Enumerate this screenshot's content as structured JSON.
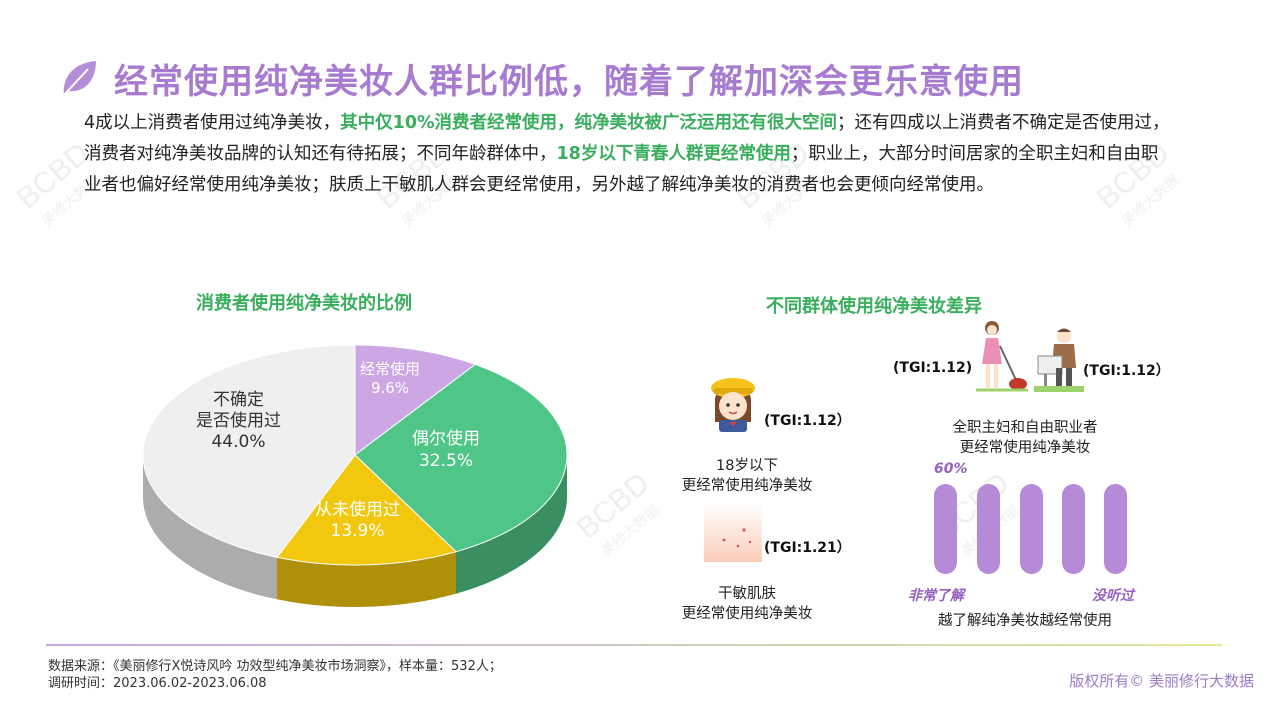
{
  "header": {
    "title": "经常使用纯净美妆人群比例低，随着了解加深会更乐意使用"
  },
  "intro": {
    "p1": "4成以上消费者使用过纯净美妆，",
    "h1": "其中仅10%消费者经常使用，纯净美妆被广泛运用还有很大空间",
    "p2": "；还有四成以上消费者不确定是否使用过，消费者对纯净美妆品牌的认知还有待拓展；不同年龄群体中，",
    "h2": "18岁以下青春人群更经常使用",
    "p3": "；职业上，大部分时间居家的全职主妇和自由职业者也偏好经常使用纯净美妆；肤质上干敏肌人群会更经常使用，另外越了解纯净美妆的消费者也会更倾向经常使用。"
  },
  "left_section": {
    "title": "消费者使用纯净美妆的比例"
  },
  "right_section": {
    "title": "不同群体使用纯净美妆差异"
  },
  "chart_data": {
    "type": "pie",
    "title": "消费者使用纯净美妆的比例",
    "slices": [
      {
        "label": "经常使用",
        "value": 9.6,
        "display": "9.6%",
        "color": "#cda7e4"
      },
      {
        "label": "偶尔使用",
        "value": 32.5,
        "display": "32.5%",
        "color": "#4fc688"
      },
      {
        "label": "从未使用过",
        "value": 13.9,
        "display": "13.9%",
        "color": "#f2c80f"
      },
      {
        "label": "不确定\n是否使用过",
        "value": 44.0,
        "display": "44.0%",
        "color": "#efefef"
      }
    ]
  },
  "pie_labels": {
    "often_name": "经常使用",
    "often_val": "9.6%",
    "occasional_name": "偶尔使用",
    "occasional_val": "32.5%",
    "never_name": "从未使用过",
    "never_val": "13.9%",
    "unsure_name1": "不确定",
    "unsure_name2": "是否使用过",
    "unsure_val": "44.0%"
  },
  "groups": {
    "youth": {
      "tgi": "(TGI:1.12）",
      "cap1": "18岁以下",
      "cap2": "更经常使用纯净美妆"
    },
    "skin": {
      "tgi": "(TGI:1.21）",
      "cap1": "干敏肌肤",
      "cap2": "更经常使用纯净美妆"
    },
    "homemaker_tgi": "(TGI:1.12)",
    "freelancer_tgi": "(TGI:1.12）",
    "occupation_cap1": "全职主妇和自由职业者",
    "occupation_cap2": "更经常使用纯净美妆",
    "awareness": {
      "top_label": "60%",
      "levels": 5,
      "left_label": "非常了解",
      "right_label": "没听过",
      "caption": "越了解纯净美妆越经常使用"
    }
  },
  "footer": {
    "source": "数据来源：《美丽修行X悦诗风吟 功效型纯净美妆市场洞察》，样本量：532人；",
    "period": "调研时间：2023.06.02-2023.06.08",
    "copyright": "版权所有© 美丽修行大数据"
  },
  "watermark": {
    "logo": "BCBD",
    "text": "美修大数据"
  },
  "colors": {
    "accent_purple": "#a77bd0",
    "accent_green": "#3aae5e",
    "bar_purple": "#b58ad6"
  },
  "icons": [
    "leaf-icon",
    "girl-icon",
    "skin-icon",
    "homemaker-icon",
    "freelancer-icon"
  ]
}
